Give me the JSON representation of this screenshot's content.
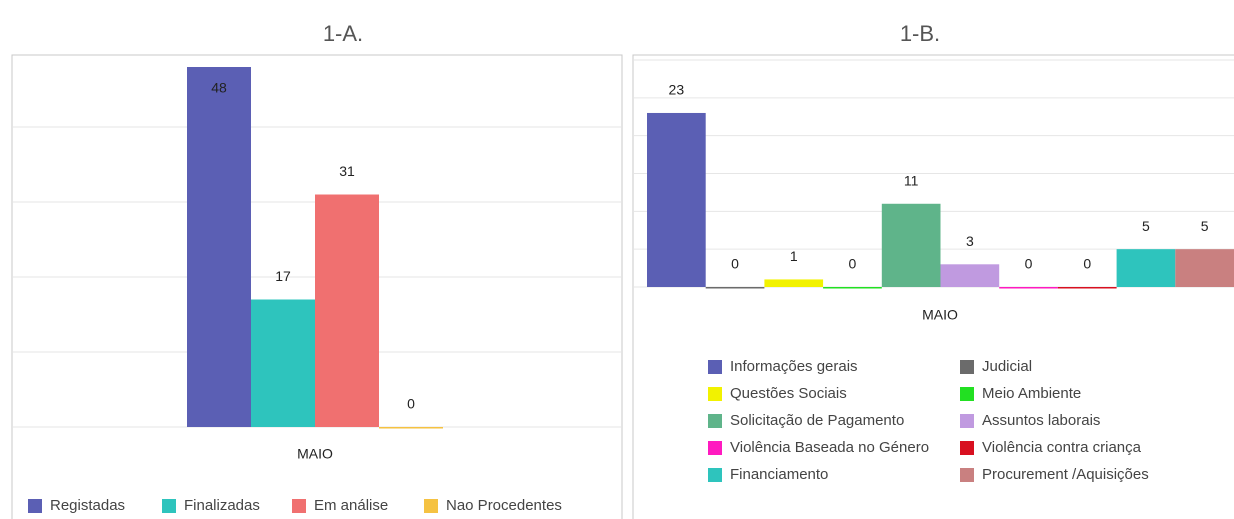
{
  "chart_data": [
    {
      "type": "bar",
      "title": "1-A.",
      "categories": [
        "MAIO"
      ],
      "series": [
        {
          "name": "Registadas",
          "color": "#5b5fb4",
          "values": [
            48
          ]
        },
        {
          "name": "Finalizadas",
          "color": "#2ec4bd",
          "values": [
            17
          ]
        },
        {
          "name": "Em análise",
          "color": "#f07070",
          "values": [
            31
          ]
        },
        {
          "name": "Nao Procedentes",
          "color": "#f5c242",
          "values": [
            0
          ]
        }
      ],
      "ylim": [
        0,
        50
      ],
      "yticks": [
        0,
        10,
        20,
        30,
        40,
        50
      ],
      "grid": true,
      "legend": "bottom"
    },
    {
      "type": "bar",
      "title": "1-B.",
      "categories": [
        "MAIO"
      ],
      "series": [
        {
          "name": "Informações gerais",
          "color": "#5b5fb4",
          "values": [
            23
          ]
        },
        {
          "name": "Judicial",
          "color": "#6b6b6b",
          "values": [
            0
          ]
        },
        {
          "name": "Questões Sociais",
          "color": "#f2f200",
          "values": [
            1
          ]
        },
        {
          "name": "Meio Ambiente",
          "color": "#22e022",
          "values": [
            0
          ]
        },
        {
          "name": "Solicitação de Pagamento",
          "color": "#5fb48a",
          "values": [
            11
          ]
        },
        {
          "name": "Assuntos laborais",
          "color": "#c09ae0",
          "values": [
            3
          ]
        },
        {
          "name": "Violência Baseada no Género",
          "color": "#ff1ac0",
          "values": [
            0
          ]
        },
        {
          "name": "Violência contra criança",
          "color": "#d81020",
          "values": [
            0
          ]
        },
        {
          "name": "Financiamento",
          "color": "#2ec4bd",
          "values": [
            5
          ]
        },
        {
          "name": "Procurement /Aquisições",
          "color": "#c98080",
          "values": [
            5
          ]
        }
      ],
      "ylim": [
        0,
        30
      ],
      "yticks": [
        0,
        5,
        10,
        15,
        20,
        25,
        30
      ],
      "grid": true,
      "legend": "bottom"
    }
  ]
}
